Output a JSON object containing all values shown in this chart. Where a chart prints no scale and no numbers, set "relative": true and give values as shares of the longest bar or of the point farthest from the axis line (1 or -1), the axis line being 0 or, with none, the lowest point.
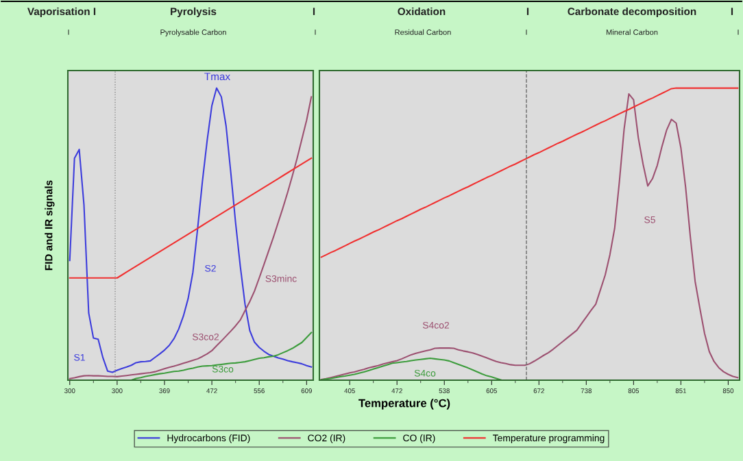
{
  "chart_data": [
    {
      "type": "line",
      "relative": true,
      "ylabel": "FID and IR signals",
      "xlabel": "Temperature (°C)",
      "legend": "bottom",
      "tick_labels": "x",
      "categories": [
        "300",
        null,
        null,
        null,
        null,
        null,
        null,
        null,
        null,
        null,
        "300",
        null,
        null,
        null,
        null,
        null,
        null,
        null,
        null,
        null,
        "369",
        null,
        null,
        null,
        null,
        null,
        null,
        null,
        null,
        null,
        "472",
        null,
        null,
        null,
        null,
        null,
        null,
        null,
        null,
        null,
        "556",
        null,
        null,
        null,
        null,
        null,
        null,
        null,
        null,
        null,
        "609",
        null
      ],
      "annotations": [
        "Vaporisation I",
        "Pyrolysis",
        "I",
        "Oxidation",
        "I",
        "Carbonate decomposition",
        "I",
        "I",
        "Pyrolysable Carbon",
        "I",
        "Residual Carbon",
        "I",
        "Mineral Carbon",
        "I",
        "S1",
        "Tmax",
        "S2",
        "S3co2",
        "S3co",
        "S3minc"
      ],
      "series": [
        {
          "name": "Hydrocarbons (FID)",
          "color": "#3c3cdc",
          "values": [
            0.41,
            0.76,
            0.79,
            0.6,
            0.23,
            0.144,
            0.14,
            0.077,
            0.031,
            0.027,
            0.034,
            0.04,
            0.045,
            0.051,
            0.06,
            0.063,
            0.064,
            0.066,
            0.078,
            0.09,
            0.103,
            0.119,
            0.142,
            0.175,
            0.22,
            0.28,
            0.37,
            0.52,
            0.68,
            0.82,
            0.94,
            1.0,
            0.97,
            0.87,
            0.71,
            0.54,
            0.39,
            0.26,
            0.17,
            0.13,
            0.112,
            0.099,
            0.088,
            0.082,
            0.076,
            0.072,
            0.067,
            0.063,
            0.06,
            0.056,
            0.05,
            0.045
          ]
        },
        {
          "name": "CO2 (IR)",
          "color": "#9c5070",
          "values": [
            0.005,
            0.008,
            0.012,
            0.015,
            0.016,
            0.015,
            0.015,
            0.014,
            0.013,
            0.013,
            0.012,
            0.014,
            0.016,
            0.018,
            0.02,
            0.022,
            0.024,
            0.026,
            0.029,
            0.034,
            0.039,
            0.044,
            0.048,
            0.053,
            0.058,
            0.063,
            0.068,
            0.073,
            0.081,
            0.09,
            0.101,
            0.118,
            0.134,
            0.151,
            0.168,
            0.186,
            0.206,
            0.238,
            0.269,
            0.305,
            0.35,
            0.396,
            0.443,
            0.49,
            0.54,
            0.59,
            0.643,
            0.7,
            0.76,
            0.825,
            0.89,
            0.97
          ]
        },
        {
          "name": "CO (IR)",
          "color": "#3c9c3c",
          "values": [
            0,
            0,
            0,
            0,
            0,
            0,
            0,
            0,
            0,
            0,
            0,
            0,
            0,
            0,
            0.006,
            0.009,
            0.013,
            0.016,
            0.019,
            0.022,
            0.024,
            0.027,
            0.03,
            0.031,
            0.034,
            0.038,
            0.041,
            0.045,
            0.048,
            0.049,
            0.05,
            0.052,
            0.054,
            0.056,
            0.058,
            0.059,
            0.061,
            0.063,
            0.067,
            0.071,
            0.075,
            0.077,
            0.08,
            0.082,
            0.087,
            0.094,
            0.101,
            0.109,
            0.119,
            0.129,
            0.146,
            0.163
          ]
        },
        {
          "name": "Temperature programming",
          "color": "#f03030",
          "values": [
            0.35,
            0.35,
            0.35,
            0.35,
            0.35,
            0.35,
            0.35,
            0.35,
            0.35,
            0.35,
            0.35,
            0.36,
            0.37,
            0.38,
            0.39,
            0.4,
            0.41,
            0.42,
            0.43,
            0.44,
            0.45,
            0.46,
            0.47,
            0.48,
            0.49,
            0.5,
            0.51,
            0.52,
            0.53,
            0.54,
            0.55,
            0.56,
            0.57,
            0.58,
            0.59,
            0.6,
            0.61,
            0.62,
            0.63,
            0.64,
            0.65,
            0.66,
            0.67,
            0.68,
            0.69,
            0.7,
            0.71,
            0.72,
            0.73,
            0.74,
            0.75,
            0.76
          ]
        }
      ]
    },
    {
      "type": "line",
      "relative": true,
      "tick_labels": "x",
      "categories": [
        null,
        null,
        null,
        null,
        null,
        null,
        "405",
        null,
        null,
        null,
        null,
        null,
        null,
        null,
        null,
        null,
        "472",
        null,
        null,
        null,
        null,
        null,
        null,
        null,
        null,
        null,
        "538",
        null,
        null,
        null,
        null,
        null,
        null,
        null,
        null,
        null,
        "605",
        null,
        null,
        null,
        null,
        null,
        null,
        null,
        null,
        null,
        "672",
        null,
        null,
        null,
        null,
        null,
        null,
        null,
        null,
        null,
        "738",
        null,
        null,
        null,
        null,
        null,
        null,
        null,
        null,
        null,
        "805",
        null,
        null,
        null,
        null,
        null,
        null,
        null,
        null,
        null,
        "851",
        null,
        null,
        null,
        null,
        null,
        null,
        null,
        null,
        null,
        "850",
        null,
        null
      ],
      "annotations": [
        "S4co2",
        "S4co",
        "S5"
      ],
      "series": [
        {
          "color": "#9c5070",
          "values": [
            0.002,
            0.005,
            0.009,
            0.013,
            0.017,
            0.021,
            0.025,
            0.028,
            0.033,
            0.037,
            0.042,
            0.046,
            0.05,
            0.055,
            0.059,
            0.063,
            0.067,
            0.073,
            0.08,
            0.087,
            0.092,
            0.096,
            0.1,
            0.104,
            0.109,
            0.11,
            0.11,
            0.11,
            0.109,
            0.104,
            0.1,
            0.097,
            0.093,
            0.088,
            0.082,
            0.076,
            0.07,
            0.064,
            0.06,
            0.057,
            0.053,
            0.051,
            0.051,
            0.051,
            0.056,
            0.065,
            0.075,
            0.085,
            0.094,
            0.106,
            0.119,
            0.132,
            0.145,
            0.158,
            0.171,
            0.194,
            0.216,
            0.239,
            0.26,
            0.31,
            0.36,
            0.43,
            0.52,
            0.68,
            0.86,
            0.98,
            0.96,
            0.83,
            0.74,
            0.665,
            0.69,
            0.735,
            0.8,
            0.857,
            0.893,
            0.88,
            0.795,
            0.66,
            0.49,
            0.339,
            0.247,
            0.16,
            0.098,
            0.064,
            0.043,
            0.029,
            0.02,
            0.013,
            0.009
          ]
        },
        {
          "color": "#3c9c3c",
          "values": [
            0.001,
            0.004,
            0.006,
            0.009,
            0.012,
            0.014,
            0.017,
            0.02,
            0.024,
            0.028,
            0.033,
            0.038,
            0.043,
            0.048,
            0.053,
            0.058,
            0.06,
            0.062,
            0.064,
            0.067,
            0.069,
            0.071,
            0.073,
            0.075,
            0.073,
            0.071,
            0.069,
            0.066,
            0.06,
            0.054,
            0.048,
            0.042,
            0.035,
            0.028,
            0.021,
            0.015,
            0.011,
            0.006,
            0.001,
            null,
            null,
            null,
            null,
            null,
            null,
            null,
            null,
            null,
            null,
            null,
            null,
            null,
            null,
            null,
            null,
            null,
            null,
            null,
            null,
            null,
            null,
            null,
            null,
            null,
            null,
            null,
            null,
            null,
            null,
            null,
            null,
            null,
            null,
            null,
            null,
            null,
            null,
            null,
            null,
            null,
            null,
            null,
            null,
            null,
            null,
            null,
            null,
            null,
            null
          ]
        },
        {
          "color": "#f03030",
          "values": [
            0.421,
            0.429,
            0.437,
            0.444,
            0.452,
            0.46,
            0.468,
            0.476,
            0.483,
            0.491,
            0.499,
            0.507,
            0.514,
            0.522,
            0.53,
            0.538,
            0.546,
            0.553,
            0.561,
            0.569,
            0.577,
            0.585,
            0.592,
            0.6,
            0.608,
            0.616,
            0.624,
            0.631,
            0.639,
            0.647,
            0.655,
            0.662,
            0.67,
            0.678,
            0.686,
            0.694,
            0.701,
            0.709,
            0.717,
            0.725,
            0.733,
            0.74,
            0.748,
            0.756,
            0.764,
            0.772,
            0.779,
            0.787,
            0.795,
            0.803,
            0.811,
            0.818,
            0.826,
            0.834,
            0.842,
            0.849,
            0.857,
            0.865,
            0.873,
            0.881,
            0.888,
            0.896,
            0.904,
            0.912,
            0.92,
            0.927,
            0.935,
            0.943,
            0.951,
            0.959,
            0.966,
            0.974,
            0.982,
            0.99,
            0.998,
            1.0,
            1.0,
            1.0,
            1.0,
            1.0,
            1.0,
            1.0,
            1.0,
            1.0,
            1.0,
            1.0,
            1.0,
            1.0,
            1.0
          ]
        }
      ]
    }
  ]
}
